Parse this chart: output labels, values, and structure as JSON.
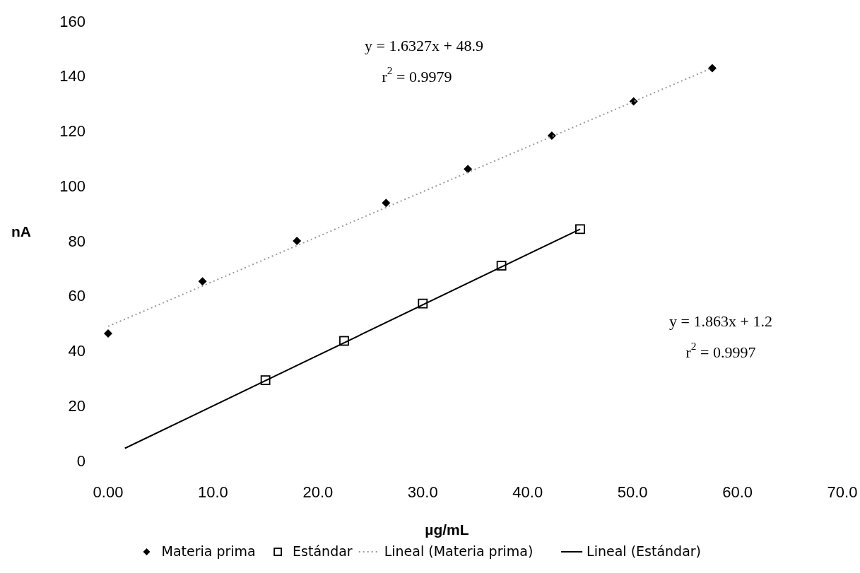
{
  "chart_data": {
    "type": "scatter",
    "xlabel": "µg/mL",
    "ylabel": "nA",
    "xlim": [
      0,
      70
    ],
    "ylim": [
      0,
      160
    ],
    "xticks": [
      {
        "value": 0,
        "label": "0.00"
      },
      {
        "value": 10,
        "label": "10.0"
      },
      {
        "value": 20,
        "label": "20.0"
      },
      {
        "value": 30,
        "label": "30.0"
      },
      {
        "value": 40,
        "label": "40.0"
      },
      {
        "value": 50,
        "label": "50.0"
      },
      {
        "value": 60,
        "label": "60.0"
      },
      {
        "value": 70,
        "label": "70.0"
      }
    ],
    "yticks": [
      0,
      20,
      40,
      60,
      80,
      100,
      120,
      140,
      160
    ],
    "grid": false,
    "legend": "bottom",
    "series": [
      {
        "name": "Materia prima",
        "marker": "diamond",
        "color": "#000000",
        "x": [
          0,
          9,
          18,
          26.5,
          34.3,
          42.3,
          50.1,
          57.6
        ],
        "values": [
          46.3,
          65.3,
          80.0,
          93.8,
          106.2,
          118.3,
          130.8,
          142.9
        ]
      },
      {
        "name": "Estándar",
        "marker": "square",
        "color": "#000000",
        "x": [
          15,
          22.5,
          30,
          37.5,
          45
        ],
        "values": [
          29.3,
          43.6,
          57.2,
          71.0,
          84.3
        ]
      },
      {
        "name": "Lineal (Materia prima)",
        "type": "line",
        "marker": "none",
        "line_style": "dotted",
        "color": "#9a9a9a",
        "x": [
          0,
          57.6
        ],
        "values": [
          48.9,
          143.0
        ]
      },
      {
        "name": "Lineal (Estándar)",
        "type": "line",
        "marker": "none",
        "line_style": "solid",
        "color": "#000000",
        "x": [
          1.6,
          45
        ],
        "values": [
          4.5,
          84.3
        ]
      }
    ],
    "annotations": [
      "y = 1.6327x + 48.9",
      "r$^{2}$ = 0.9979",
      "y = 1.863x + 1.2",
      "r$^{2}$ = 0.9997"
    ]
  }
}
